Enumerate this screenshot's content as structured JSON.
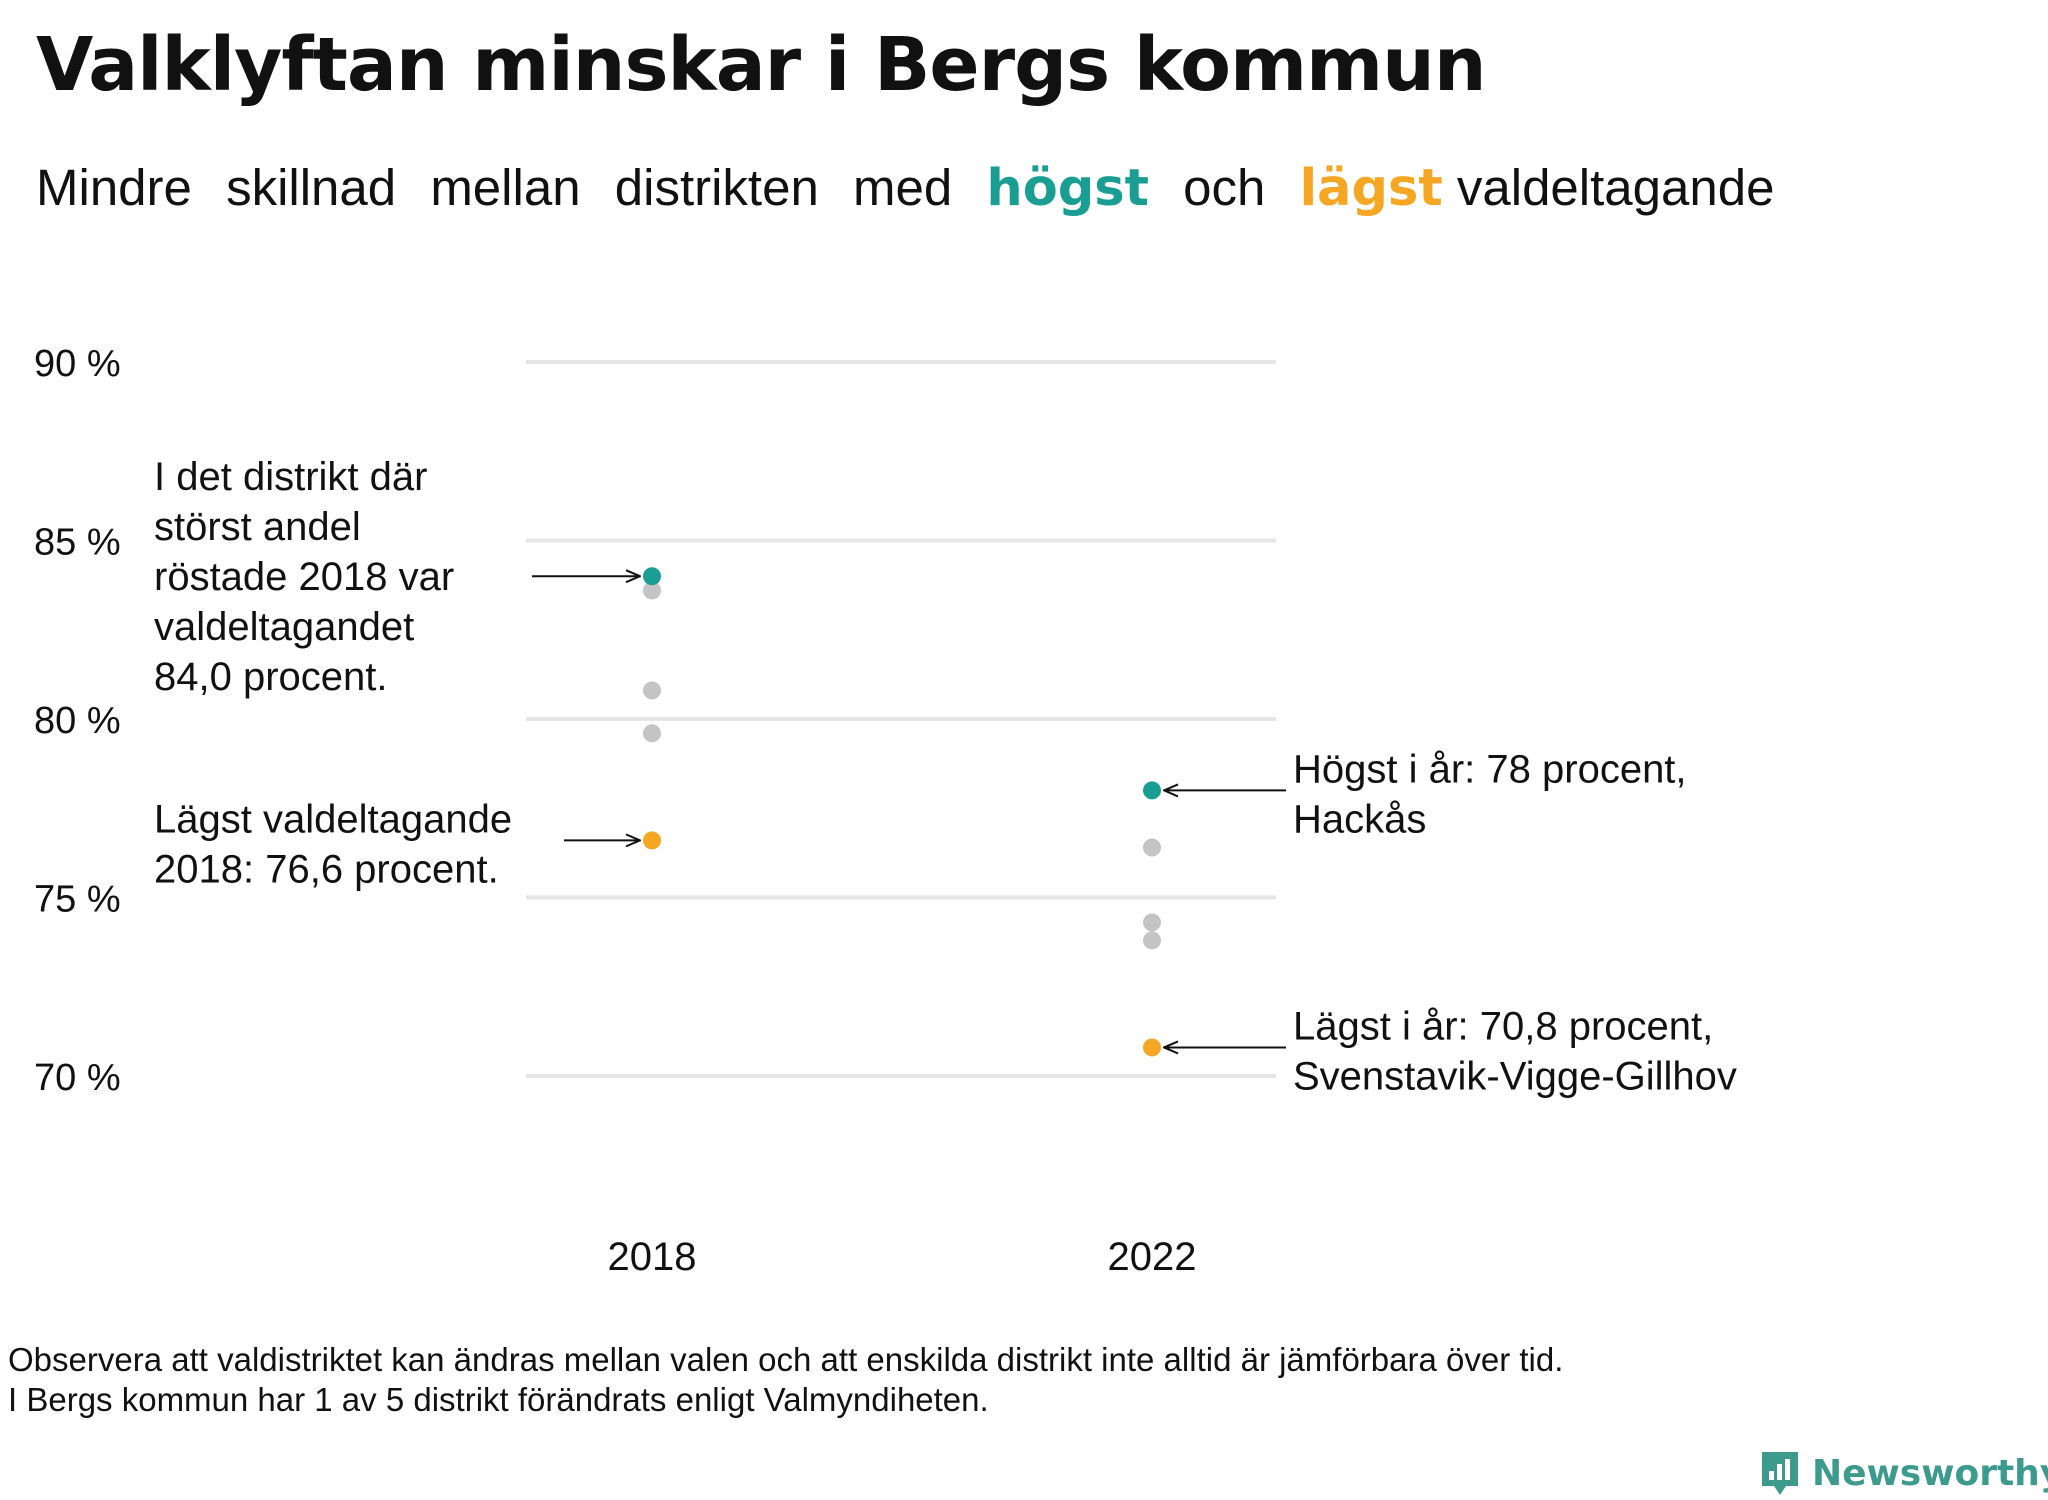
{
  "title": "Valklyftan minskar i Bergs kommun",
  "subtitle": {
    "words_before": [
      "Mindre",
      "skillnad",
      "mellan",
      "distrikten",
      "med"
    ],
    "highest_word": "högst",
    "middle_word": "och",
    "lowest_word": "lägst",
    "word_after": "valdeltagande"
  },
  "colors": {
    "highest": "#1a9e93",
    "lowest": "#f5a623",
    "other": "#c4c4c4",
    "grid": "#e6e6e6",
    "text": "#111111",
    "brand": "#3d9b8e"
  },
  "chart_data": {
    "type": "scatter",
    "title": "Valklyftan minskar i Bergs kommun",
    "xlabel": "",
    "ylabel": "",
    "categories": [
      "2018",
      "2022"
    ],
    "ylim": [
      65,
      90
    ],
    "yticks": [
      90,
      85,
      80,
      75,
      70
    ],
    "ytick_labels": [
      "90 %",
      "85 %",
      "80 %",
      "75 %",
      "70 %"
    ],
    "grid": true,
    "series": [
      {
        "role": "highest",
        "values": [
          84.0,
          78.0
        ]
      },
      {
        "role": "lowest",
        "values": [
          76.6,
          70.8
        ]
      },
      {
        "role": "other",
        "points": [
          {
            "x": "2018",
            "y": 83.6
          },
          {
            "x": "2018",
            "y": 80.8
          },
          {
            "x": "2018",
            "y": 79.6
          },
          {
            "x": "2022",
            "y": 76.4
          },
          {
            "x": "2022",
            "y": 74.3
          },
          {
            "x": "2022",
            "y": 73.8
          }
        ]
      }
    ],
    "annotations": [
      {
        "id": "high-2018",
        "lines": [
          "I det distrikt där",
          "störst andel",
          "röstade 2018 var",
          "valdeltagandet",
          "84,0 procent."
        ]
      },
      {
        "id": "low-2018",
        "lines": [
          "Lägst valdeltagande",
          "2018: 76,6 procent."
        ]
      },
      {
        "id": "high-2022",
        "lines": [
          "Högst i år: 78 procent,",
          "Hackås"
        ]
      },
      {
        "id": "low-2022",
        "lines": [
          "Lägst i år: 70,8 procent,",
          "Svenstavik-Vigge-Gillhov"
        ]
      }
    ]
  },
  "footnote": {
    "line1": "Observera att valdistriktet kan ändras mellan valen och att enskilda distrikt inte alltid är jämförbara över tid.",
    "line2": "I Bergs kommun har 1 av 5 distrikt förändrats enligt Valmyndiheten."
  },
  "brand": {
    "name": "Newsworthy",
    "icon": "newsworthy-logo-icon"
  }
}
